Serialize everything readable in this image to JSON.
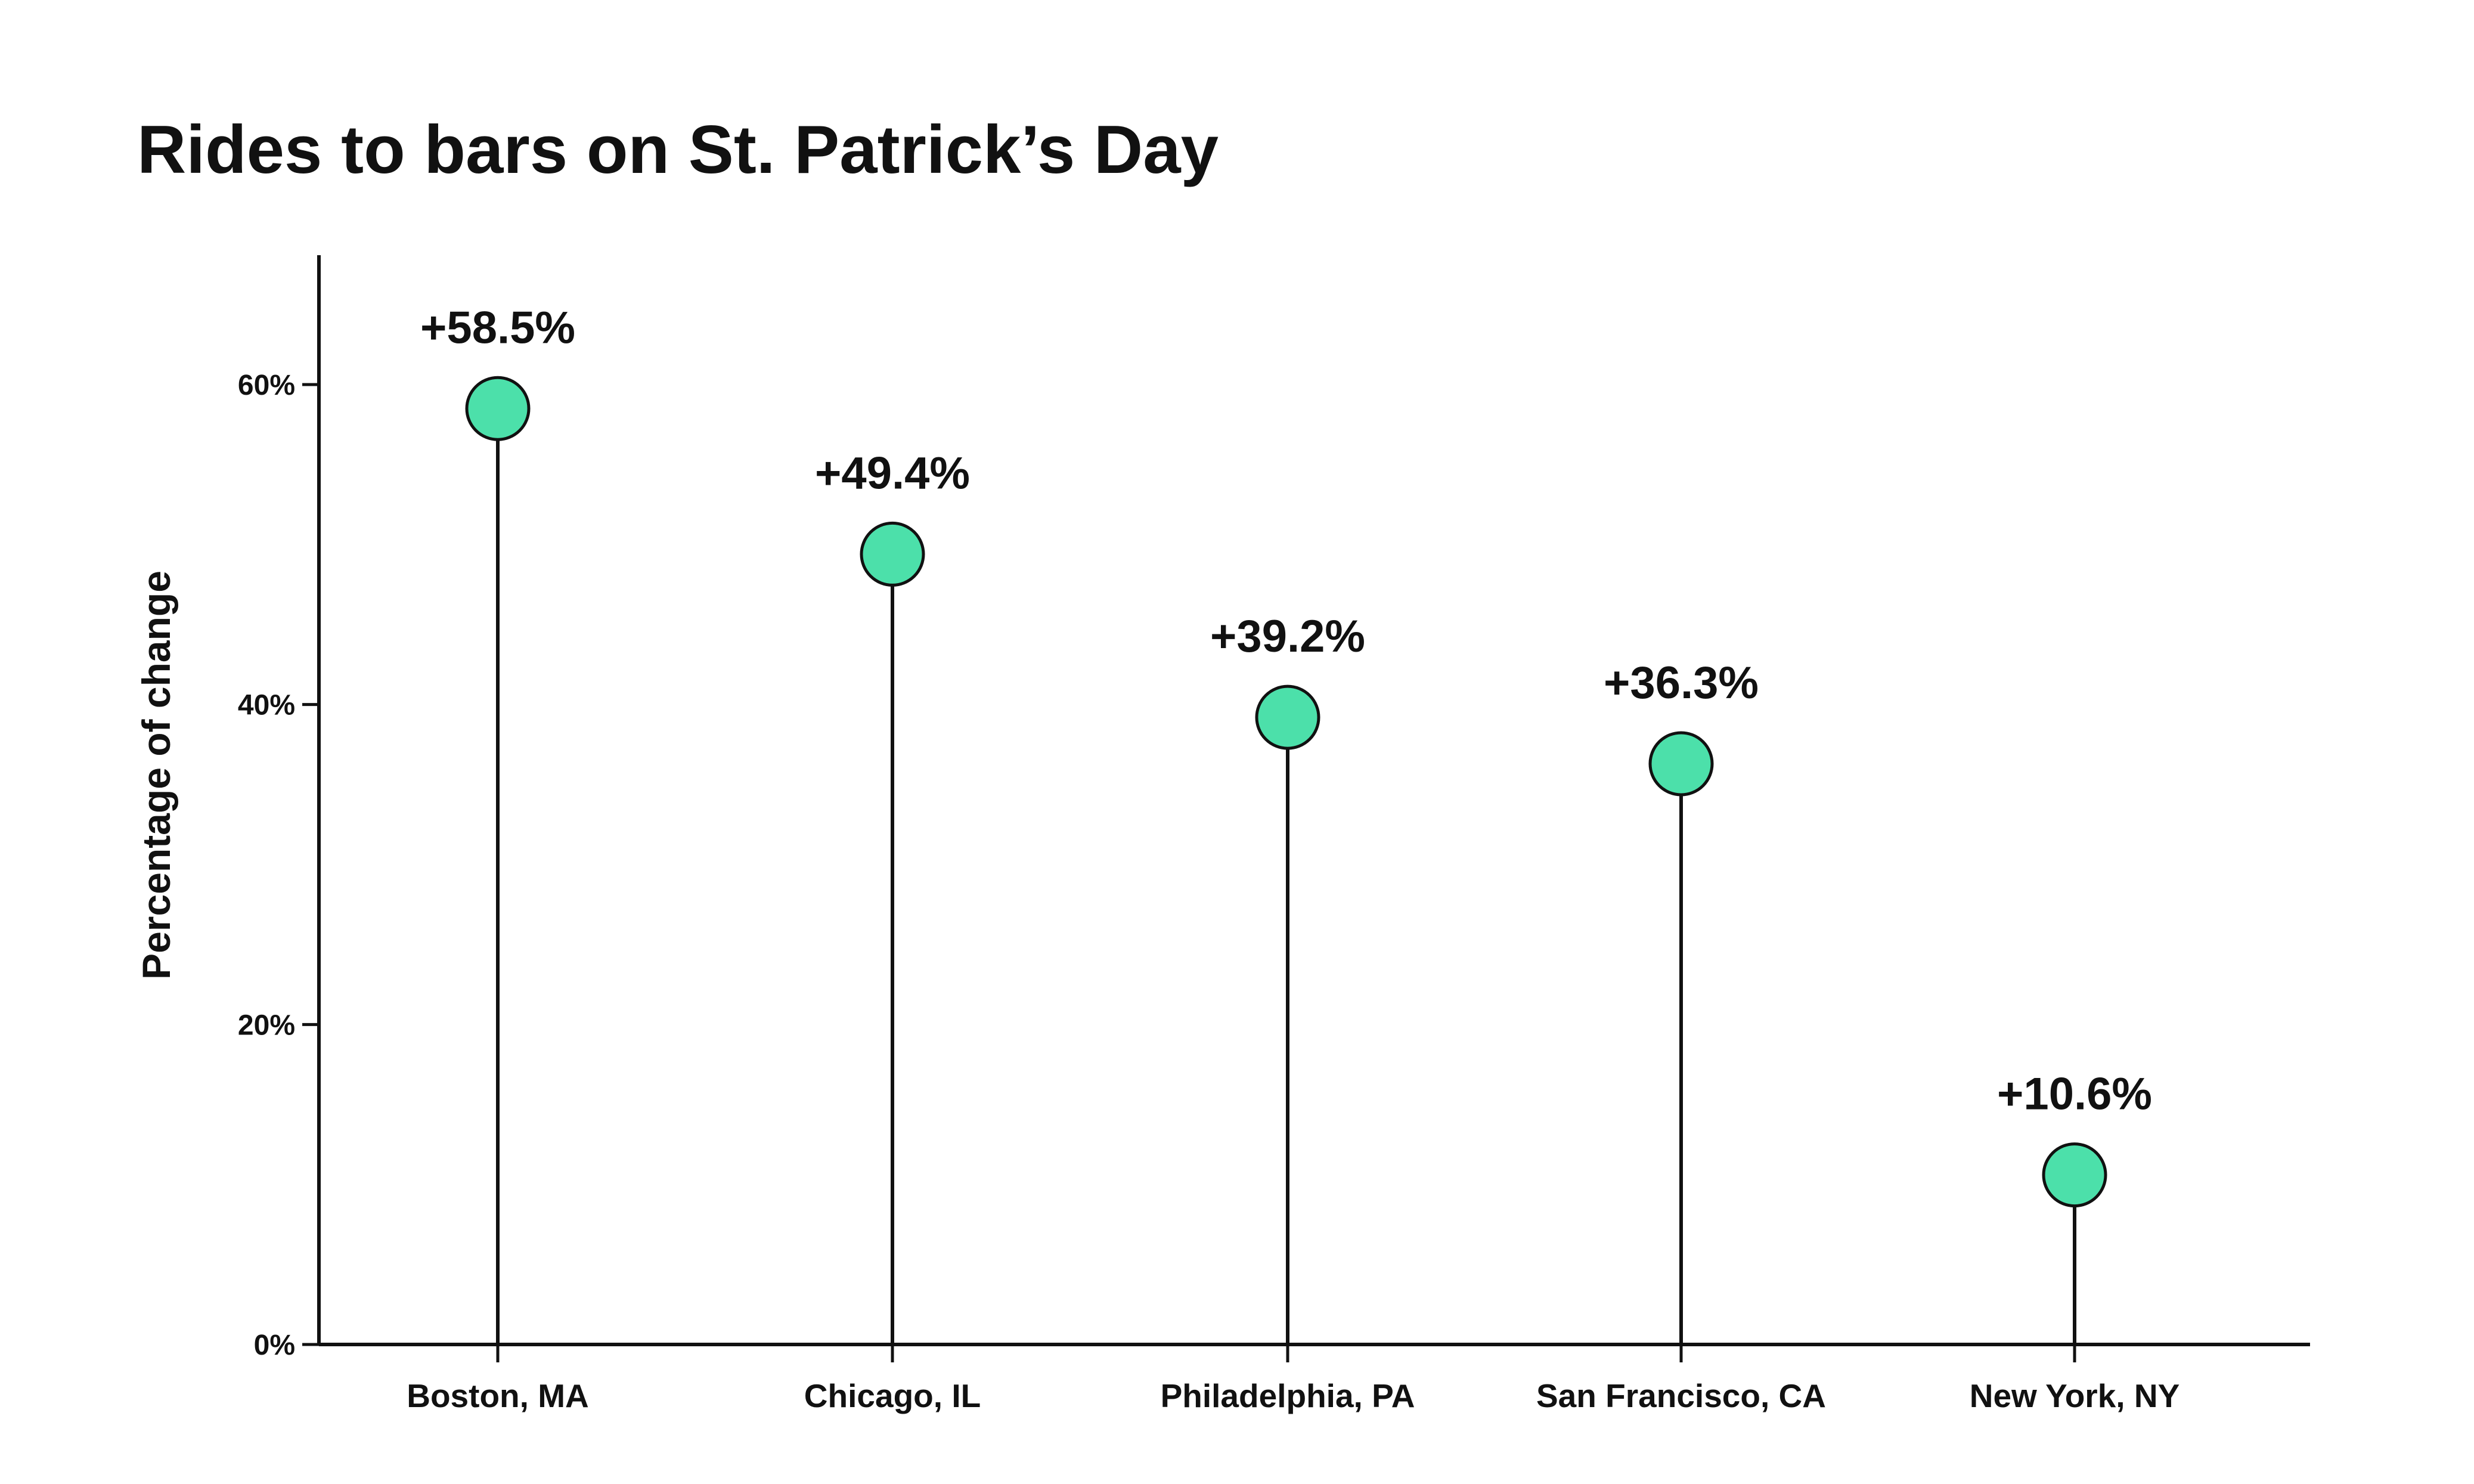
{
  "chart_data": {
    "type": "lollipop",
    "title": "Rides to bars on St. Patrick’s Day",
    "xlabel": "",
    "ylabel": "Percentage of change",
    "categories": [
      "Boston, MA",
      "Chicago, IL",
      "Philadelphia, PA",
      "San Francisco, CA",
      "New York, NY"
    ],
    "values": [
      58.5,
      49.4,
      39.2,
      36.3,
      10.6
    ],
    "value_labels": [
      "+58.5%",
      "+49.4%",
      "+39.2%",
      "+36.3%",
      "+10.6%"
    ],
    "yticks": [
      0,
      20,
      40,
      60
    ],
    "ytick_labels": [
      "0%",
      "20%",
      "40%",
      "60%"
    ],
    "ylim": [
      0,
      68
    ],
    "grid": false,
    "legend": "none",
    "colors": {
      "marker_fill": "#4ce0aa",
      "marker_stroke": "#111111",
      "stem": "#111111",
      "axis": "#111111"
    }
  }
}
